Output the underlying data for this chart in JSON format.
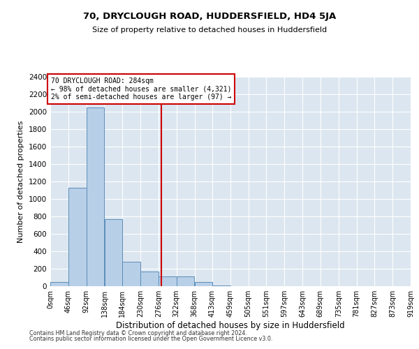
{
  "title": "70, DRYCLOUGH ROAD, HUDDERSFIELD, HD4 5JA",
  "subtitle": "Size of property relative to detached houses in Huddersfield",
  "xlabel": "Distribution of detached houses by size in Huddersfield",
  "ylabel": "Number of detached properties",
  "footnote1": "Contains HM Land Registry data © Crown copyright and database right 2024.",
  "footnote2": "Contains public sector information licensed under the Open Government Licence v3.0.",
  "bin_edges": [
    0,
    46,
    92,
    138,
    184,
    230,
    276,
    322,
    368,
    413,
    459,
    505,
    551,
    597,
    643,
    689,
    735,
    781,
    827,
    873,
    919
  ],
  "bar_heights": [
    50,
    1130,
    2050,
    770,
    280,
    170,
    110,
    110,
    50,
    10,
    0,
    0,
    0,
    0,
    0,
    0,
    0,
    0,
    0,
    0
  ],
  "property_value": 284,
  "annotation_line1": "70 DRYCLOUGH ROAD: 284sqm",
  "annotation_line2": "← 98% of detached houses are smaller (4,321)",
  "annotation_line3": "2% of semi-detached houses are larger (97) →",
  "bar_color": "#b8cfe8",
  "bar_edgecolor": "#5b8db8",
  "vline_color": "#cc0000",
  "annotation_box_edgecolor": "#cc0000",
  "annotation_box_facecolor": "#ffffff",
  "background_color": "#dce6f0",
  "ylim": [
    0,
    2400
  ],
  "yticks": [
    0,
    200,
    400,
    600,
    800,
    1000,
    1200,
    1400,
    1600,
    1800,
    2000,
    2200,
    2400
  ]
}
